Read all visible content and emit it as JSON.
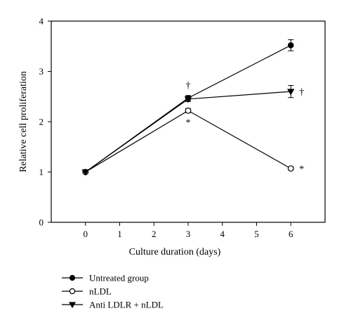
{
  "chart_data": {
    "type": "line",
    "xlabel": "Culture duration (days)",
    "ylabel": "Relative cell proliferation",
    "xlim": [
      -1,
      7
    ],
    "ylim": [
      0,
      4
    ],
    "xticks": [
      "0",
      "1",
      "2",
      "3",
      "4",
      "5",
      "6"
    ],
    "yticks": [
      "0",
      "1",
      "2",
      "3",
      "4"
    ],
    "grid": false,
    "legend_position": "bottom-left",
    "series": [
      {
        "name": "Untreated group",
        "marker": "filled-circle",
        "x": [
          0,
          3,
          6
        ],
        "y": [
          1.0,
          2.47,
          3.52
        ],
        "err": [
          0.0,
          0.05,
          0.11
        ]
      },
      {
        "name": "nLDL",
        "marker": "open-circle",
        "x": [
          0,
          3,
          6
        ],
        "y": [
          1.0,
          2.22,
          1.07
        ],
        "err": [
          0.0,
          0.04,
          0.03
        ]
      },
      {
        "name": "Anti LDLR + nLDL",
        "marker": "filled-triangle-down",
        "x": [
          0,
          3,
          6
        ],
        "y": [
          1.0,
          2.45,
          2.6
        ],
        "err": [
          0.0,
          0.05,
          0.12
        ]
      }
    ],
    "annotations": [
      {
        "text": "†",
        "x": 3,
        "y": 2.55,
        "anchor": "above"
      },
      {
        "text": "*",
        "x": 3,
        "y": 2.15,
        "anchor": "below"
      },
      {
        "text": "†",
        "x": 6,
        "y": 2.6,
        "anchor": "right"
      },
      {
        "text": "*",
        "x": 6,
        "y": 1.07,
        "anchor": "right"
      }
    ]
  }
}
